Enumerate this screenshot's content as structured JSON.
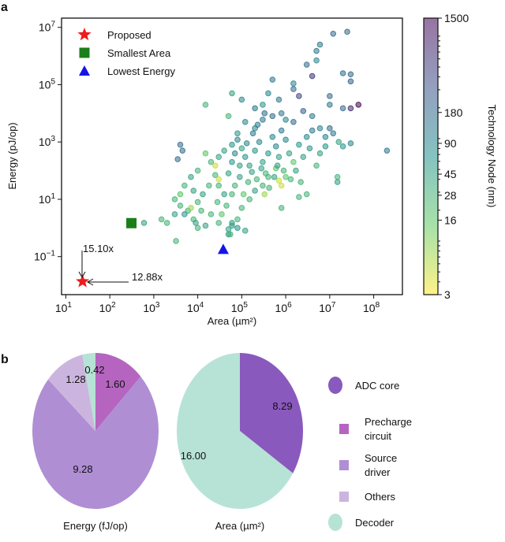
{
  "chart_data": [
    {
      "panel": "a",
      "type": "scatter",
      "xlabel": "Area (µm²)",
      "ylabel": "Energy (pJ/op)",
      "xscale": "log",
      "yscale": "log",
      "xlim": [
        8,
        450000000.0
      ],
      "ylim": [
        0.0047,
        21000000.0
      ],
      "xticks": [
        {
          "base": "10",
          "exp": "1"
        },
        {
          "base": "10",
          "exp": "2"
        },
        {
          "base": "10",
          "exp": "3"
        },
        {
          "base": "10",
          "exp": "4"
        },
        {
          "base": "10",
          "exp": "5"
        },
        {
          "base": "10",
          "exp": "6"
        },
        {
          "base": "10",
          "exp": "7"
        },
        {
          "base": "10",
          "exp": "8"
        }
      ],
      "yticks": [
        {
          "base": "10",
          "exp": "7"
        },
        {
          "base": "10",
          "exp": "5"
        },
        {
          "base": "10",
          "exp": "3"
        },
        {
          "base": "10",
          "exp": "1"
        },
        {
          "base": "10",
          "exp": "−1"
        }
      ],
      "grid": false,
      "legend_position": "top-left",
      "legend": [
        {
          "label": "Proposed",
          "marker": "star",
          "color": "#ee1c1c"
        },
        {
          "label": "Smallest Area",
          "marker": "square",
          "color": "#1a7f1a"
        },
        {
          "label": "Lowest Energy",
          "marker": "triangle",
          "color": "#1414e6"
        }
      ],
      "highlights": [
        {
          "name": "Proposed",
          "area": 24,
          "energy": 0.0135
        },
        {
          "name": "Smallest Area",
          "area": 310,
          "energy": 1.47
        },
        {
          "name": "Lowest Energy",
          "area": 38000,
          "energy": 0.18
        }
      ],
      "annotations": [
        {
          "text": "15.10x",
          "direction": "down"
        },
        {
          "text": "12.88x",
          "direction": "left"
        }
      ],
      "colorbar": {
        "label": "Technology Node (nm)",
        "scale": "log",
        "range": [
          3,
          1500
        ],
        "colormap": "viridis_r",
        "ticks": [
          "1500",
          "180",
          "90",
          "45",
          "28",
          "16",
          "3"
        ]
      },
      "points_fields": [
        "area",
        "energy",
        "node"
      ],
      "points": [
        [
          200000000.0,
          500,
          130
        ],
        [
          25000000.0,
          7000000.0,
          180
        ],
        [
          12000000.0,
          6000000.0,
          180
        ],
        [
          6000000.0,
          2500000.0,
          130
        ],
        [
          5000000.0,
          1500000.0,
          130
        ],
        [
          5000000.0,
          700000.0,
          90
        ],
        [
          3000000.0,
          500000.0,
          180
        ],
        [
          4000000.0,
          200000.0,
          600
        ],
        [
          20000000.0,
          250000.0,
          180
        ],
        [
          30000000.0,
          230000.0,
          180
        ],
        [
          30000000.0,
          130000.0,
          250
        ],
        [
          45000000.0,
          20000.0,
          1500
        ],
        [
          30000000.0,
          15000.0,
          700
        ],
        [
          20000000.0,
          15000.0,
          180
        ],
        [
          10000000.0,
          20000.0,
          130
        ],
        [
          10000000.0,
          40000.0,
          180
        ],
        [
          1500000.0,
          110000.0,
          90
        ],
        [
          500000.0,
          150000.0,
          130
        ],
        [
          1500000.0,
          70000.0,
          180
        ],
        [
          2000000.0,
          40000.0,
          400
        ],
        [
          700000.0,
          30000.0,
          130
        ],
        [
          400000.0,
          50000.0,
          90
        ],
        [
          300000.0,
          20000.0,
          60
        ],
        [
          200000.0,
          15000.0,
          130
        ],
        [
          100000.0,
          30000.0,
          90
        ],
        [
          60000.0,
          50000.0,
          45
        ],
        [
          15000.0,
          20000.0,
          28
        ],
        [
          50000.0,
          8000.0,
          28
        ],
        [
          80000.0,
          2000.0,
          60
        ],
        [
          120000.0,
          5000.0,
          90
        ],
        [
          200000.0,
          3000.0,
          90
        ],
        [
          300000.0,
          6000.0,
          130
        ],
        [
          500000.0,
          8000.0,
          180
        ],
        [
          800000.0,
          10000.0,
          130
        ],
        [
          1000000.0,
          6000.0,
          90
        ],
        [
          1500000.0,
          5000.0,
          180
        ],
        [
          2500000.0,
          12000.0,
          250
        ],
        [
          4000000.0,
          8000.0,
          130
        ],
        [
          6000000.0,
          3000.0,
          90
        ],
        [
          8000000.0,
          1500.0,
          90
        ],
        [
          12000000.0,
          2000.0,
          130
        ],
        [
          16000000.0,
          1000.0,
          45
        ],
        [
          20000000.0,
          700,
          60
        ],
        [
          30000000.0,
          900,
          90
        ],
        [
          15000000.0,
          60,
          28
        ],
        [
          15000000.0,
          40,
          45
        ],
        [
          3000000.0,
          15,
          28
        ],
        [
          2000000.0,
          12,
          28
        ],
        [
          1000000.0,
          60,
          16
        ],
        [
          800000.0,
          30,
          5
        ],
        [
          700000.0,
          45,
          5
        ],
        [
          600000.0,
          120,
          16
        ],
        [
          400000.0,
          60,
          28
        ],
        [
          300000.0,
          30,
          28
        ],
        [
          200000.0,
          20,
          45
        ],
        [
          150000.0,
          10,
          28
        ],
        [
          100000.0,
          5,
          28
        ],
        [
          80000.0,
          2,
          28
        ],
        [
          60000.0,
          1.2,
          45
        ],
        [
          50000.0,
          0.6,
          60
        ],
        [
          30000.0,
          1.5,
          28
        ],
        [
          20000.0,
          3,
          28
        ],
        [
          15000.0,
          1.2,
          45
        ],
        [
          10000.0,
          1,
          28
        ],
        [
          8000.0,
          2,
          28
        ],
        [
          6000.0,
          4,
          28
        ],
        [
          4000.0,
          6,
          28
        ],
        [
          3000.0,
          3,
          45
        ],
        [
          2000.0,
          1.5,
          28
        ],
        [
          1500.0,
          2,
          28
        ],
        [
          3200.0,
          0.35,
          28
        ],
        [
          5000.0,
          3,
          60
        ],
        [
          7000.0,
          5,
          8
        ],
        [
          10000.0,
          8,
          28
        ],
        [
          13000.0,
          15,
          45
        ],
        [
          18000.0,
          30,
          28
        ],
        [
          25000.0,
          70,
          28
        ],
        [
          30000.0,
          300,
          45
        ],
        [
          20000.0,
          200,
          28
        ],
        [
          10000.0,
          100,
          28
        ],
        [
          7000.0,
          60,
          45
        ],
        [
          5000.0,
          30,
          28
        ],
        [
          4000.0,
          15,
          16
        ],
        [
          3000.0,
          10,
          28
        ],
        [
          8000.0,
          20,
          45
        ],
        [
          4500.0,
          500,
          180
        ],
        [
          3500.0,
          250,
          180
        ],
        [
          4000.0,
          800,
          180
        ],
        [
          15000.0,
          400,
          16
        ],
        [
          25000.0,
          150,
          5
        ],
        [
          40000.0,
          500,
          45
        ],
        [
          60000.0,
          800,
          60
        ],
        [
          80000.0,
          1200.0,
          90
        ],
        [
          100000.0,
          600,
          45
        ],
        [
          120000.0,
          300,
          60
        ],
        [
          150000.0,
          150,
          45
        ],
        [
          200000.0,
          500,
          60
        ],
        [
          250000.0,
          1000.0,
          90
        ],
        [
          300000.0,
          200,
          45
        ],
        [
          350000.0,
          80,
          28
        ],
        [
          400000.0,
          400,
          60
        ],
        [
          500000.0,
          1500.0,
          90
        ],
        [
          600000.0,
          700,
          90
        ],
        [
          700000.0,
          300,
          45
        ],
        [
          800000.0,
          2500.0,
          130
        ],
        [
          1000000.0,
          1200.0,
          90
        ],
        [
          1200000.0,
          400,
          45
        ],
        [
          1500000.0,
          200,
          16
        ],
        [
          2000000.0,
          800,
          60
        ],
        [
          2500000.0,
          300,
          45
        ],
        [
          3000000.0,
          1500.0,
          90
        ],
        [
          3500000.0,
          600,
          60
        ],
        [
          4000000.0,
          2500.0,
          130
        ],
        [
          5000000.0,
          150,
          28
        ],
        [
          6000000.0,
          400,
          45
        ],
        [
          8000000.0,
          700,
          60
        ],
        [
          10000000.0,
          3000.0,
          180
        ],
        [
          70000.0,
          30,
          28
        ],
        [
          90000.0,
          60,
          45
        ],
        [
          110000.0,
          15,
          16
        ],
        [
          140000.0,
          40,
          28
        ],
        [
          170000.0,
          90,
          45
        ],
        [
          220000.0,
          50,
          28
        ],
        [
          280000.0,
          120,
          45
        ],
        [
          330000.0,
          15,
          8
        ],
        [
          420000.0,
          25,
          28
        ],
        [
          550000.0,
          60,
          45
        ],
        [
          650000.0,
          150,
          45
        ],
        [
          900000.0,
          100,
          28
        ],
        [
          1300000.0,
          50,
          28
        ],
        [
          1700000.0,
          100,
          45
        ],
        [
          2200000.0,
          40,
          28
        ],
        [
          30000.0,
          30,
          28
        ],
        [
          40000.0,
          15,
          45
        ],
        [
          50000.0,
          80,
          45
        ],
        [
          60000.0,
          200,
          60
        ],
        [
          70000.0,
          400,
          90
        ],
        [
          90000.0,
          150,
          45
        ],
        [
          130000.0,
          900,
          90
        ],
        [
          180000.0,
          2000.0,
          130
        ],
        [
          230000.0,
          4000.0,
          130
        ],
        [
          330000.0,
          10000.0,
          180
        ],
        [
          60000.0,
          15,
          28
        ],
        [
          45000.0,
          6,
          28
        ],
        [
          35000.0,
          3,
          16
        ],
        [
          28000.0,
          8,
          28
        ],
        [
          12000.0,
          4,
          28
        ],
        [
          9000.0,
          1.5,
          45
        ],
        [
          30000.0,
          50,
          5
        ],
        [
          800000.0,
          5,
          28
        ],
        [
          55000.0,
          0.6,
          28
        ],
        [
          50000.0,
          0.9,
          45
        ],
        [
          60000.0,
          1.5,
          45
        ],
        [
          80000.0,
          1,
          60
        ],
        [
          120000.0,
          0.8,
          45
        ],
        [
          600,
          1.5,
          45
        ]
      ]
    },
    {
      "panel": "b",
      "type": "pie",
      "xlabel": "Energy (fJ/op)",
      "slices": [
        {
          "label": "Precharge circuit",
          "value": 1.6,
          "text": "1.60",
          "color": "#b565c0"
        },
        {
          "label": "Source driver",
          "value": 9.28,
          "text": "9.28",
          "color": "#b08ed4"
        },
        {
          "label": "Others",
          "value": 1.28,
          "text": "1.28",
          "color": "#cbb5df"
        },
        {
          "label": "Decoder",
          "value": 0.42,
          "text": "0.42",
          "color": "#b6e3d5"
        }
      ]
    },
    {
      "panel": "b",
      "type": "pie",
      "xlabel": "Area (µm²)",
      "slices": [
        {
          "label": "ADC core",
          "value": 8.29,
          "text": "8.29",
          "color": "#8a59bd"
        },
        {
          "label": "Decoder",
          "value": 16.0,
          "text": "16.00",
          "color": "#b6e3d5"
        }
      ]
    }
  ],
  "pie_legend": [
    {
      "label": "ADC core",
      "marker": "circle",
      "color": "#8a59bd"
    },
    {
      "label": "Precharge circuit",
      "lines": [
        "Precharge",
        "circuit"
      ],
      "marker": "square",
      "color": "#b565c0"
    },
    {
      "label": "Source driver",
      "lines": [
        "Source",
        "driver"
      ],
      "marker": "square",
      "color": "#b08ed4"
    },
    {
      "label": "Others",
      "lines": [
        "Others"
      ],
      "marker": "square",
      "color": "#cbb5df"
    },
    {
      "label": "Decoder",
      "marker": "circle",
      "color": "#b6e3d5"
    }
  ],
  "panel_labels": [
    "a",
    "b"
  ]
}
